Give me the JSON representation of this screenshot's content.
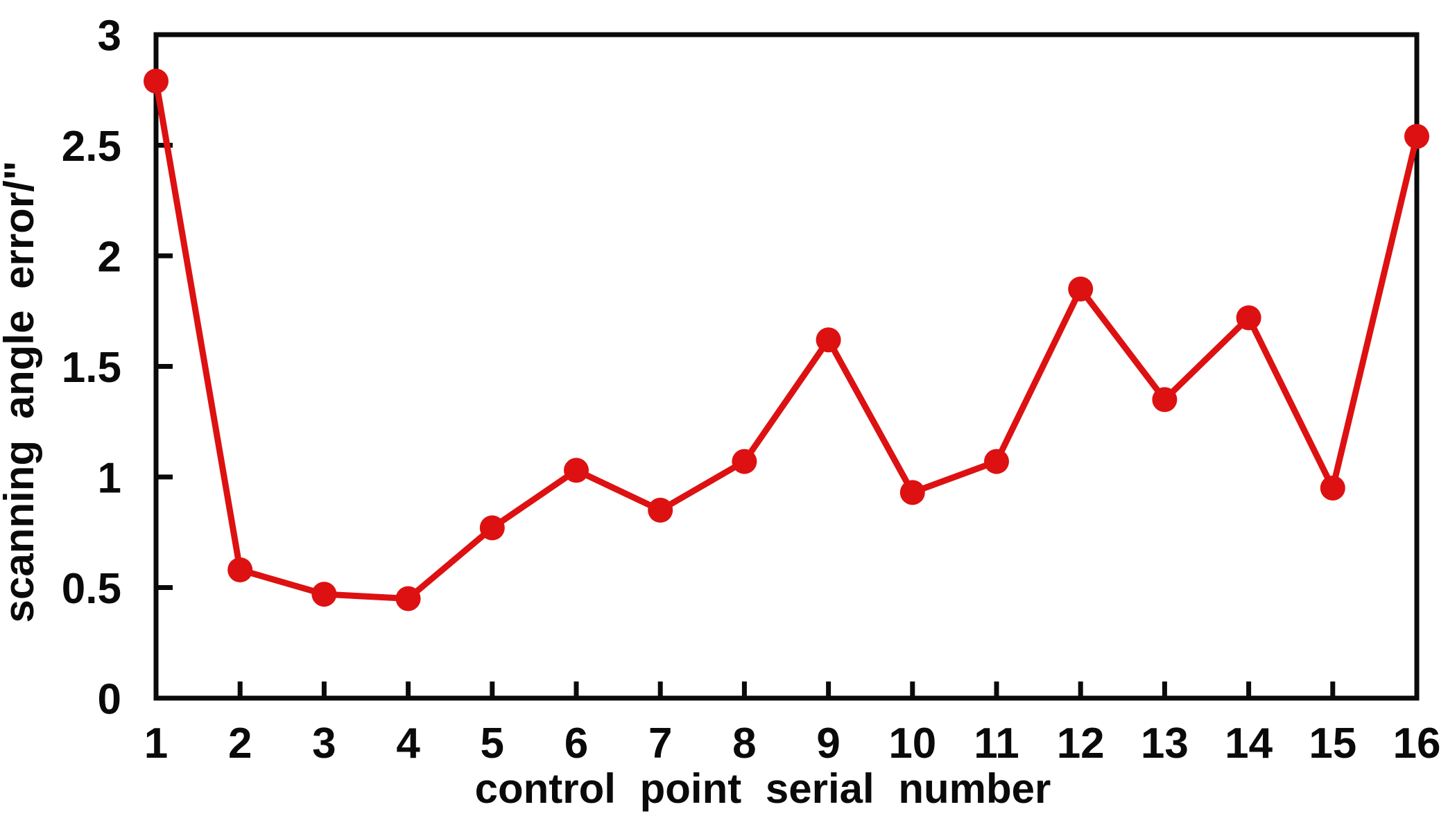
{
  "chart_data": {
    "type": "line",
    "x": [
      1,
      2,
      3,
      4,
      5,
      6,
      7,
      8,
      9,
      10,
      11,
      12,
      13,
      14,
      15,
      16
    ],
    "series": [
      {
        "name": "scanning angle error",
        "values": [
          2.79,
          0.58,
          0.47,
          0.45,
          0.77,
          1.03,
          0.85,
          1.07,
          1.62,
          0.93,
          1.07,
          1.85,
          1.35,
          1.72,
          0.95,
          2.54
        ]
      }
    ],
    "title": "",
    "xlabel": "control point serial number",
    "ylabel": "scanning angle error/\"",
    "xlim": [
      1,
      16
    ],
    "ylim": [
      0,
      3
    ],
    "xtick_labels": [
      "1",
      "2",
      "3",
      "4",
      "5",
      "6",
      "7",
      "8",
      "9",
      "10",
      "11",
      "12",
      "13",
      "14",
      "15",
      "16"
    ],
    "yticks": [
      0,
      0.5,
      1,
      1.5,
      2,
      2.5,
      3
    ],
    "ytick_labels": [
      "0",
      "0.5",
      "1",
      "1.5",
      "2",
      "2.5",
      "3"
    ],
    "grid": false,
    "legend": "none",
    "line_color": "#dd1111",
    "marker": "circle",
    "marker_color": "#dd1111",
    "axis_color": "#0a0a0a",
    "tick_label_color": "#0a0a0a"
  }
}
